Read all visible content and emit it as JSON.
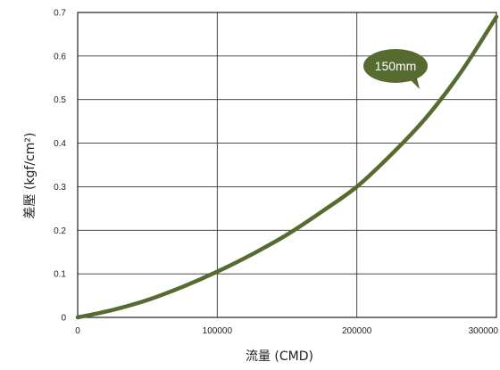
{
  "chart_data": {
    "type": "line",
    "title": "",
    "xlabel": "流量 (CMD)",
    "ylabel": "差壓 (kgf/cm²)",
    "xlim": [
      0,
      300000
    ],
    "ylim": [
      0,
      0.7
    ],
    "x_ticks": [
      0,
      100000,
      200000,
      300000
    ],
    "x_tick_labels": [
      "0",
      "100000",
      "200000",
      "300000"
    ],
    "y_ticks": [
      0,
      0.1,
      0.2,
      0.3,
      0.4,
      0.5,
      0.6,
      0.7
    ],
    "y_tick_labels": [
      "0",
      "0.1",
      "0.2",
      "0.3",
      "0.4",
      "0.5",
      "0.6",
      "0.7"
    ],
    "grid": true,
    "series": [
      {
        "name": "150mm",
        "color": "#556b2f",
        "x": [
          0,
          25000,
          50000,
          75000,
          100000,
          125000,
          150000,
          175000,
          200000,
          225000,
          250000,
          275000,
          300000
        ],
        "y": [
          0,
          0.017,
          0.04,
          0.07,
          0.105,
          0.145,
          0.19,
          0.243,
          0.3,
          0.375,
          0.46,
          0.565,
          0.69
        ]
      }
    ],
    "annotations": [
      {
        "text": "150mm",
        "style": "speech-bubble",
        "color": "#556b2f"
      }
    ]
  }
}
